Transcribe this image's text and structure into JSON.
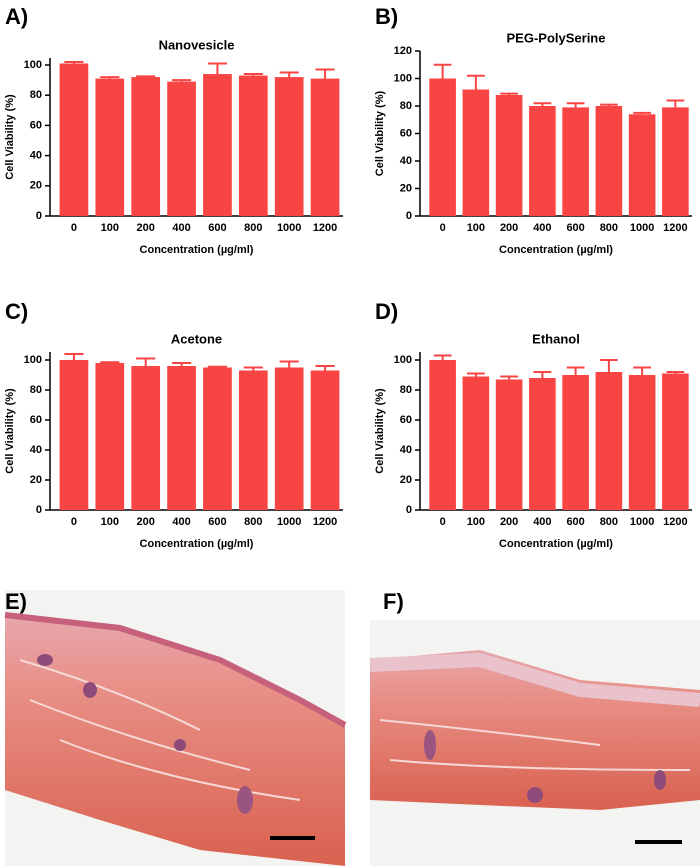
{
  "chart_data": [
    {
      "type": "bar",
      "panel": "A)",
      "title": "Nanovesicle",
      "xlabel": "Concentration (µg/ml)",
      "ylabel": "Cell Viability (%)",
      "categories": [
        "0",
        "100",
        "200",
        "400",
        "600",
        "800",
        "1000",
        "1200"
      ],
      "values": [
        101,
        91,
        92,
        89,
        94,
        93,
        92,
        91
      ],
      "errors": [
        1,
        1,
        0.5,
        1,
        7,
        1,
        3,
        6
      ],
      "color": "#f94444",
      "ylim": [
        0,
        100
      ],
      "yticks": [
        0,
        20,
        40,
        60,
        80,
        100
      ]
    },
    {
      "type": "bar",
      "panel": "B)",
      "title": "PEG-PolySerine",
      "xlabel": "Concentration (µg/ml)",
      "ylabel": "Cell Viability (%)",
      "categories": [
        "0",
        "100",
        "200",
        "400",
        "600",
        "800",
        "1000",
        "1200"
      ],
      "values": [
        100,
        92,
        88,
        80,
        79,
        80,
        74,
        79
      ],
      "errors": [
        10,
        10,
        1,
        2,
        3,
        1,
        1,
        5
      ],
      "color": "#f94444",
      "ylim": [
        0,
        120
      ],
      "yticks": [
        0,
        20,
        40,
        60,
        80,
        100,
        120
      ]
    },
    {
      "type": "bar",
      "panel": "C)",
      "title": "Acetone",
      "xlabel": "Concentration (µg/ml)",
      "ylabel": "Cell Viability (%)",
      "categories": [
        "0",
        "100",
        "200",
        "400",
        "600",
        "800",
        "1000",
        "1200"
      ],
      "values": [
        100,
        98,
        96,
        96,
        95,
        93,
        95,
        93
      ],
      "errors": [
        4,
        0.5,
        5,
        2,
        0.5,
        2,
        4,
        3
      ],
      "color": "#f94444",
      "ylim": [
        0,
        100
      ],
      "yticks": [
        0,
        20,
        40,
        60,
        80,
        100
      ]
    },
    {
      "type": "bar",
      "panel": "D)",
      "title": "Ethanol",
      "xlabel": "Concentration (µg/ml)",
      "ylabel": "Cell Viability (%)",
      "categories": [
        "0",
        "100",
        "200",
        "400",
        "600",
        "800",
        "1000",
        "1200"
      ],
      "values": [
        100,
        89,
        87,
        88,
        90,
        92,
        90,
        91
      ],
      "errors": [
        3,
        2,
        2,
        4,
        5,
        8,
        5,
        1
      ],
      "color": "#f94444",
      "ylim": [
        0,
        100
      ],
      "yticks": [
        0,
        20,
        40,
        60,
        80,
        100
      ]
    }
  ],
  "images": [
    {
      "panel": "E)"
    },
    {
      "panel": "F)"
    }
  ]
}
